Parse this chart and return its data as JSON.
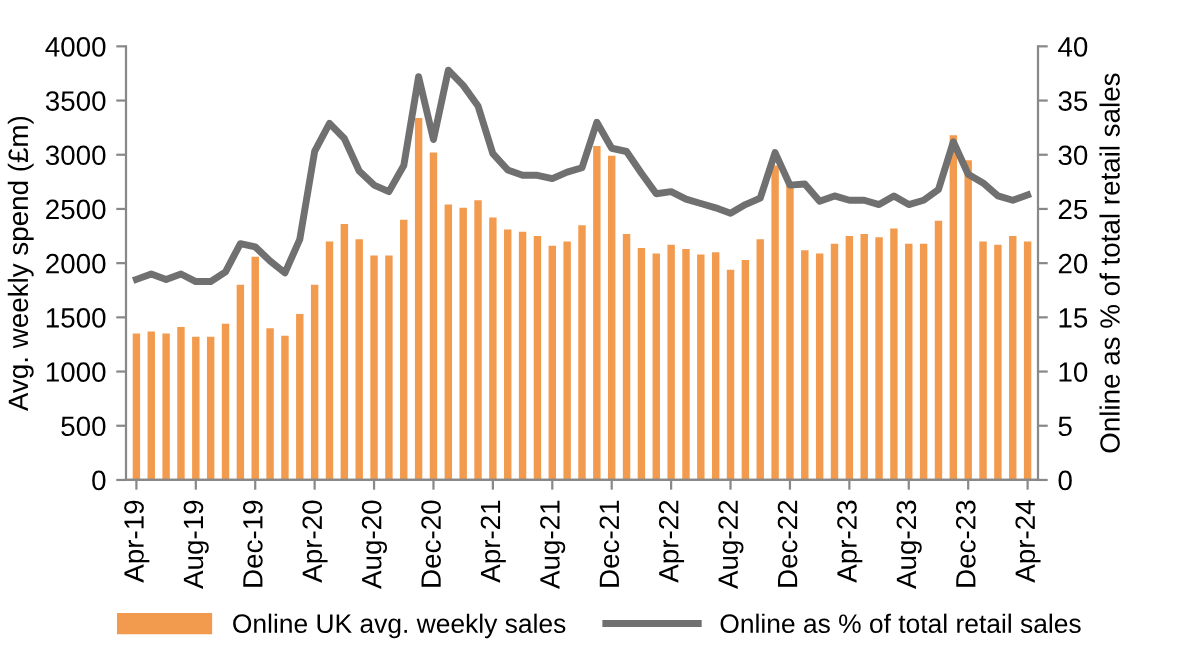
{
  "chart_data": {
    "type": "bar",
    "ylabel": "Avg. weekly spend (£m)",
    "y2label": "Online as % of total retail sales",
    "categories": [
      "Apr-19",
      null,
      null,
      null,
      "Aug-19",
      null,
      null,
      null,
      "Dec-19",
      null,
      null,
      null,
      "Apr-20",
      null,
      null,
      null,
      "Aug-20",
      null,
      null,
      null,
      "Dec-20",
      null,
      null,
      null,
      "Apr-21",
      null,
      null,
      null,
      "Aug-21",
      null,
      null,
      null,
      "Dec-21",
      null,
      null,
      null,
      "Apr-22",
      null,
      null,
      null,
      "Aug-22",
      null,
      null,
      null,
      "Dec-22",
      null,
      null,
      null,
      "Apr-23",
      null,
      null,
      null,
      "Aug-23",
      null,
      null,
      null,
      "Dec-23",
      null,
      null,
      null,
      "Apr-24"
    ],
    "series": [
      {
        "name": "Online UK avg. weekly sales",
        "color": "#f29b4f",
        "values": [
          1350,
          1370,
          1350,
          1410,
          1320,
          1320,
          1440,
          1800,
          2060,
          1400,
          1330,
          1530,
          1800,
          2200,
          2360,
          2220,
          2070,
          2070,
          2400,
          3340,
          3020,
          2540,
          2510,
          2580,
          2420,
          2310,
          2290,
          2250,
          2160,
          2200,
          2350,
          3080,
          2990,
          2270,
          2140,
          2090,
          2170,
          2130,
          2080,
          2100,
          1940,
          2030,
          2220,
          2900,
          2740,
          2120,
          2090,
          2180,
          2250,
          2270,
          2240,
          2320,
          2180,
          2180,
          2390,
          3180,
          2950,
          2200,
          2170,
          2250,
          2200
        ]
      },
      {
        "name": "Online as % of total retail sales",
        "type": "line",
        "axis": "y2",
        "color": "#707070",
        "values": [
          18.5,
          19,
          18.5,
          19,
          18.3,
          18.3,
          19.2,
          21.8,
          21.5,
          20.2,
          19.1,
          22.2,
          30.3,
          32.9,
          31.5,
          28.5,
          27.2,
          26.6,
          29.0,
          37.2,
          31.4,
          37.8,
          36.4,
          34.5,
          30.1,
          28.6,
          28.1,
          28.1,
          27.8,
          28.4,
          28.8,
          33.0,
          30.6,
          30.3,
          28.3,
          26.4,
          26.6,
          25.9,
          25.5,
          25.1,
          24.6,
          25.4,
          26.0,
          30.2,
          27.2,
          27.3,
          25.7,
          26.2,
          25.8,
          25.8,
          25.4,
          26.2,
          25.4,
          25.8,
          26.8,
          31.2,
          28.2,
          27.4,
          26.2,
          25.8,
          26.3
        ]
      }
    ],
    "ylim": [
      0,
      4000
    ],
    "yticks": [
      0,
      500,
      1000,
      1500,
      2000,
      2500,
      3000,
      3500,
      4000
    ],
    "y2lim": [
      0,
      40
    ],
    "y2ticks": [
      0,
      5,
      10,
      15,
      20,
      25,
      30,
      35,
      40
    ],
    "legend": "bottom",
    "grid": false
  }
}
